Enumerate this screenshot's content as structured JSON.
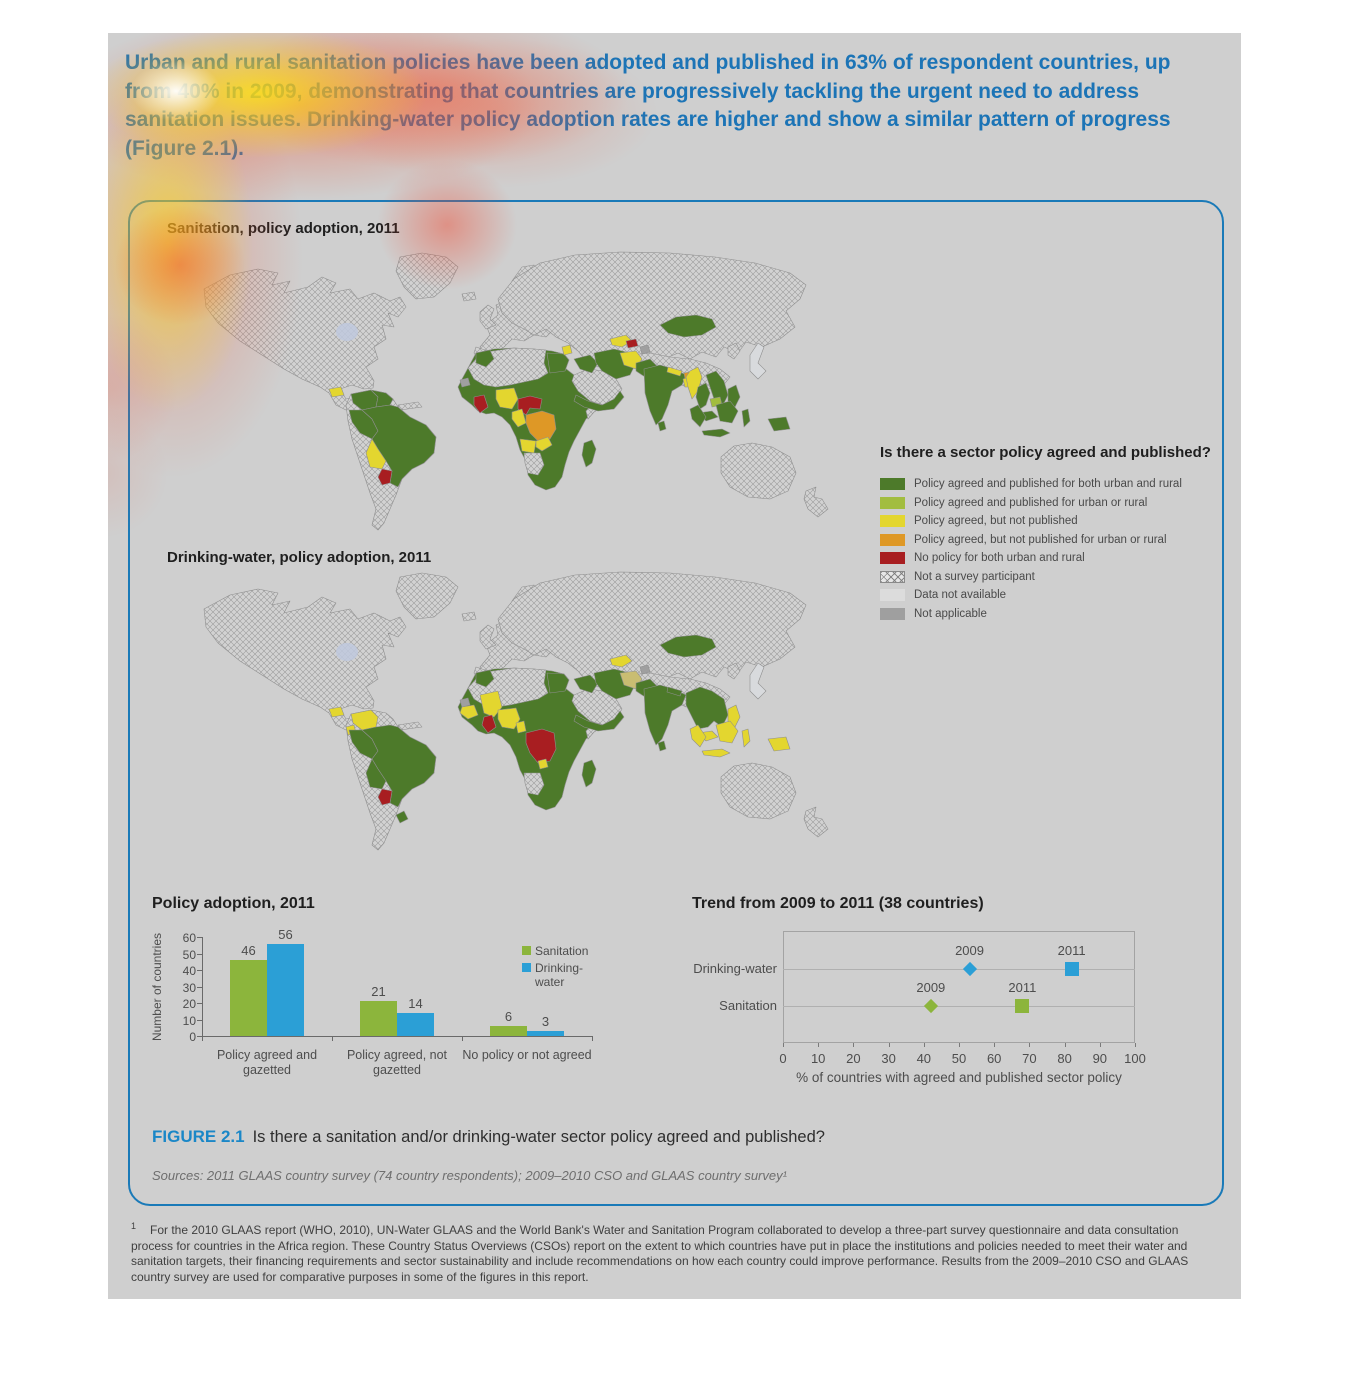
{
  "page": {
    "intro_paragraph": "Urban and rural sanitation policies have been adopted and published in 63% of respondent countries, up from 40% in 2009, demonstrating that countries are progressively tackling the urgent need to address sanitation issues. Drinking-water policy adoption rates are higher and show a similar pattern of progress (Figure 2.1).",
    "background_color": "#cfcfcf",
    "accent_blue": "#1c74b6"
  },
  "figure": {
    "maps": [
      {
        "title": "Sanitation, policy adoption, 2011"
      },
      {
        "title": "Drinking-water, policy adoption, 2011"
      }
    ],
    "legend": {
      "title": "Is there a sector policy agreed and published?",
      "items": [
        {
          "label": "Policy agreed and published for both urban and rural",
          "color": "#4d7a2a",
          "swatch": "solid"
        },
        {
          "label": "Policy agreed and published for urban or rural",
          "color": "#a2bd3f",
          "swatch": "solid"
        },
        {
          "label": "Policy agreed, but not published",
          "color": "#e3d62f",
          "swatch": "solid"
        },
        {
          "label": "Policy agreed, but not published for urban or rural",
          "color": "#de9826",
          "swatch": "solid"
        },
        {
          "label": "No policy for both urban and rural",
          "color": "#a81e21",
          "swatch": "solid"
        },
        {
          "label": "Not a survey participant",
          "color": "#bdbdbd",
          "swatch": "hatch"
        },
        {
          "label": "Data not available",
          "color": "#dcdcdc",
          "swatch": "solid"
        },
        {
          "label": "Not applicable",
          "color": "#9f9f9f",
          "swatch": "solid"
        }
      ]
    },
    "caption": {
      "tag": "FIGURE 2.1",
      "text": "Is there a sanitation and/or drinking-water sector policy agreed and published?"
    },
    "sources": "Sources: 2011 GLAAS country survey (74 country respondents); 2009–2010 CSO and GLAAS country survey¹"
  },
  "chart_data": [
    {
      "type": "bar",
      "title": "Policy adoption, 2011",
      "categories": [
        "Policy agreed and gazetted",
        "Policy agreed, not gazetted",
        "No policy or not agreed"
      ],
      "series": [
        {
          "name": "Sanitation",
          "color": "#8cb53c",
          "values": [
            46,
            21,
            6
          ]
        },
        {
          "name": "Drinking-water",
          "color": "#2b9fd6",
          "values": [
            56,
            14,
            3
          ]
        }
      ],
      "xlabel": "",
      "ylabel": "Number of countries",
      "ylim": [
        0,
        60
      ],
      "yticks": [
        0,
        10,
        20,
        30,
        40,
        50,
        60
      ],
      "grid": false,
      "legend_position": "right"
    },
    {
      "type": "scatter",
      "title": "Trend from 2009 to 2011 (38 countries)",
      "rows": [
        {
          "label": "Drinking-water",
          "color": "#2b9fd6",
          "points": [
            {
              "year": "2009",
              "value": 53,
              "marker": "diamond"
            },
            {
              "year": "2011",
              "value": 82,
              "marker": "square"
            }
          ]
        },
        {
          "label": "Sanitation",
          "color": "#8cb53c",
          "points": [
            {
              "year": "2009",
              "value": 42,
              "marker": "diamond"
            },
            {
              "year": "2011",
              "value": 68,
              "marker": "square"
            }
          ]
        }
      ],
      "xlabel": "% of countries with agreed and published sector policy",
      "xlim": [
        0,
        100
      ],
      "xticks": [
        0,
        10,
        20,
        30,
        40,
        50,
        60,
        70,
        80,
        90,
        100
      ],
      "grid": false
    }
  ],
  "footnote": {
    "marker": "1",
    "text": "For the 2010 GLAAS report (WHO, 2010), UN-Water GLAAS and the World Bank's Water and Sanitation Program collaborated to develop a three-part survey questionnaire and data consultation process for countries in the Africa region. These Country Status Overviews (CSOs) report on the extent to which countries have put in place the institutions and policies needed to meet their water and sanitation targets, their financing requirements and sector sustainability and include recommendations on how each country could improve performance. Results from the 2009–2010 CSO and GLAAS country survey are used for comparative purposes in some of the figures in this report."
  }
}
